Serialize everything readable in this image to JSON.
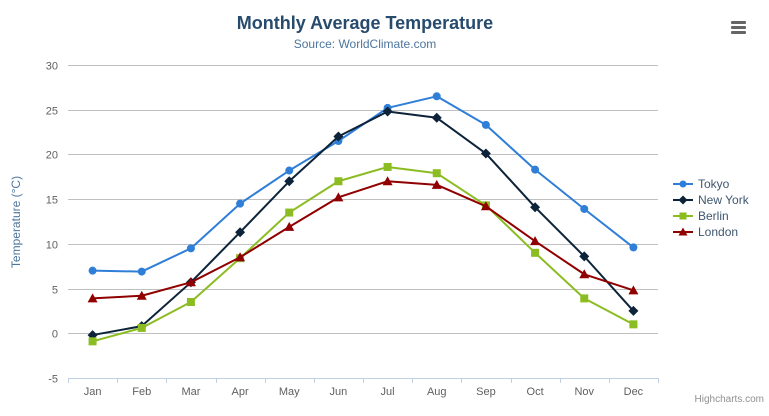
{
  "credits": "Highcharts.com",
  "export_menu_icon": "hamburger-icon",
  "chart_data": {
    "type": "line",
    "title": "Monthly Average Temperature",
    "subtitle": "Source: WorldClimate.com",
    "xlabel": "",
    "ylabel": "Temperature (°C)",
    "ylim": [
      -5,
      30
    ],
    "ytick_step": 5,
    "grid": true,
    "legend_position": "right",
    "categories": [
      "Jan",
      "Feb",
      "Mar",
      "Apr",
      "May",
      "Jun",
      "Jul",
      "Aug",
      "Sep",
      "Oct",
      "Nov",
      "Dec"
    ],
    "series": [
      {
        "name": "Tokyo",
        "color": "#2f7ed8",
        "marker": "circle",
        "values": [
          7.0,
          6.9,
          9.5,
          14.5,
          18.2,
          21.5,
          25.2,
          26.5,
          23.3,
          18.3,
          13.9,
          9.6
        ]
      },
      {
        "name": "New York",
        "color": "#0d233a",
        "marker": "diamond",
        "values": [
          -0.2,
          0.8,
          5.7,
          11.3,
          17.0,
          22.0,
          24.8,
          24.1,
          20.1,
          14.1,
          8.6,
          2.5
        ]
      },
      {
        "name": "Berlin",
        "color": "#8bbc21",
        "marker": "square",
        "values": [
          -0.9,
          0.6,
          3.5,
          8.4,
          13.5,
          17.0,
          18.6,
          17.9,
          14.3,
          9.0,
          3.9,
          1.0
        ]
      },
      {
        "name": "London",
        "color": "#910000",
        "marker": "triangle",
        "values": [
          3.9,
          4.2,
          5.7,
          8.5,
          11.9,
          15.2,
          17.0,
          16.6,
          14.2,
          10.3,
          6.6,
          4.8
        ]
      }
    ],
    "colors": {
      "grid_line": "#c0c0c0",
      "axis_line": "#c0d0e0",
      "axis_label": "#606060",
      "title": "#274b6d",
      "subtitle": "#4d759e",
      "legend_text": "#3e576f",
      "credits_text": "#909090"
    }
  }
}
